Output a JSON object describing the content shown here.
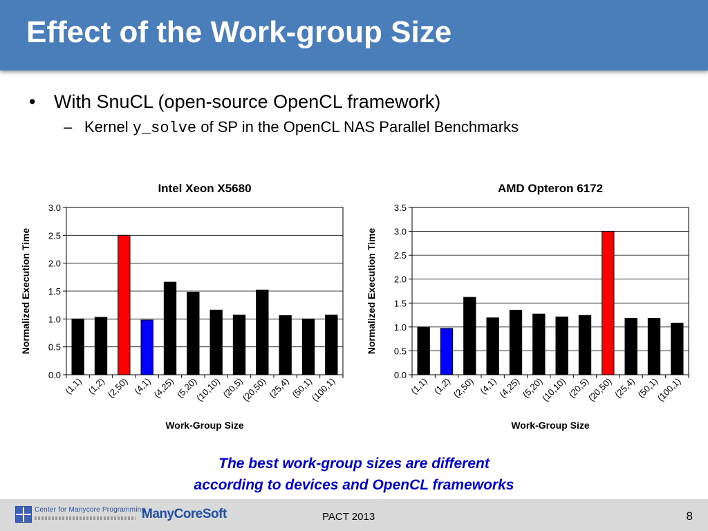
{
  "slide": {
    "title": "Effect of the Work-group Size",
    "bullet1": "With SnuCL (open-source OpenCL framework)",
    "bullet2_prefix": "Kernel ",
    "bullet2_code": "y_solve",
    "bullet2_suffix": " of SP in the OpenCL NAS Parallel Benchmarks",
    "note_line1": "The best work-group sizes are different",
    "note_line2": "according to devices and OpenCL frameworks",
    "conference": "PACT 2013",
    "page_number": "8",
    "logo_cmp_text": "Center for Manycore Programming",
    "logo_mcs_text": "ManyCoreSoft"
  },
  "chart_data": [
    {
      "type": "bar",
      "title": "Intel Xeon X5680",
      "xlabel": "Work-Group Size",
      "ylabel": "Normalized Execution Time",
      "ylim": [
        0,
        3.0
      ],
      "ticks": [
        0.0,
        0.5,
        1.0,
        1.5,
        2.0,
        2.5,
        3.0
      ],
      "grid": true,
      "categories": [
        "(1,1)",
        "(1,2)",
        "(2,50)",
        "(4,1)",
        "(4,25)",
        "(5,20)",
        "(10,10)",
        "(20,5)",
        "(20,50)",
        "(25,4)",
        "(50,1)",
        "(100,1)"
      ],
      "values": [
        1.0,
        1.03,
        2.5,
        0.98,
        1.66,
        1.48,
        1.16,
        1.07,
        1.52,
        1.06,
        1.0,
        1.07
      ],
      "colors": [
        "#000000",
        "#000000",
        "#ff0000",
        "#0000ff",
        "#000000",
        "#000000",
        "#000000",
        "#000000",
        "#000000",
        "#000000",
        "#000000",
        "#000000"
      ]
    },
    {
      "type": "bar",
      "title": "AMD Opteron 6172",
      "xlabel": "Work-Group Size",
      "ylabel": "Normalized Execution Time",
      "ylim": [
        0,
        3.5
      ],
      "ticks": [
        0.0,
        0.5,
        1.0,
        1.5,
        2.0,
        2.5,
        3.0,
        3.5
      ],
      "grid": true,
      "categories": [
        "(1,1)",
        "(1,2)",
        "(2,50)",
        "(4,1)",
        "(4,25)",
        "(5,20)",
        "(10,10)",
        "(20,5)",
        "(20,50)",
        "(25,4)",
        "(50,1)",
        "(100,1)"
      ],
      "values": [
        1.0,
        0.97,
        1.62,
        1.19,
        1.35,
        1.27,
        1.21,
        1.24,
        3.0,
        1.18,
        1.18,
        1.08
      ],
      "colors": [
        "#000000",
        "#0000ff",
        "#000000",
        "#000000",
        "#000000",
        "#000000",
        "#000000",
        "#000000",
        "#ff0000",
        "#000000",
        "#000000",
        "#000000"
      ]
    }
  ]
}
